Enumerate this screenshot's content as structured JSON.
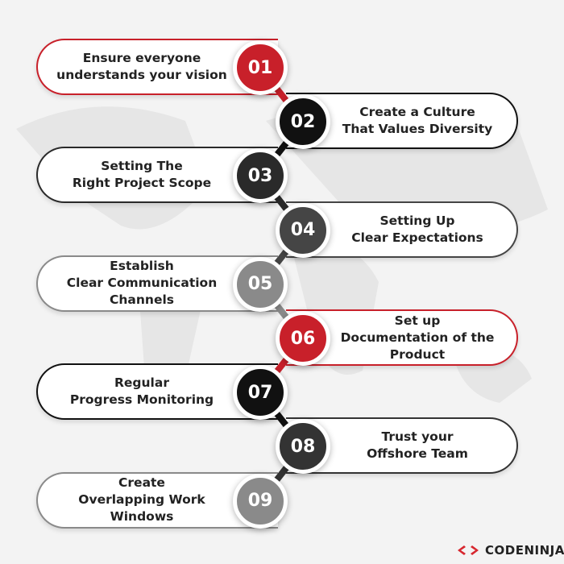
{
  "steps": [
    {
      "number": "01",
      "text": "Ensure everyone\nunderstands your vision",
      "side": "left",
      "color": "#c8202a"
    },
    {
      "number": "02",
      "text": "Create a Culture\nThat Values Diversity",
      "side": "right",
      "color": "#111111"
    },
    {
      "number": "03",
      "text": "Setting The\nRight Project Scope",
      "side": "left",
      "color": "#2a2a2a"
    },
    {
      "number": "04",
      "text": "Setting Up\nClear Expectations",
      "side": "right",
      "color": "#454545"
    },
    {
      "number": "05",
      "text": "Establish\nClear Communication\nChannels",
      "side": "left",
      "color": "#8a8a8a"
    },
    {
      "number": "06",
      "text": "Set up\nDocumentation of the\nProduct",
      "side": "right",
      "color": "#c8202a"
    },
    {
      "number": "07",
      "text": "Regular\nProgress Monitoring",
      "side": "left",
      "color": "#111111"
    },
    {
      "number": "08",
      "text": "Trust your\nOffshore Team",
      "side": "right",
      "color": "#333333"
    },
    {
      "number": "09",
      "text": "Create\nOverlapping Work\nWindows",
      "side": "left",
      "color": "#8a8a8a"
    }
  ],
  "brand": {
    "name": "CODENINJA",
    "color": "#d7262e"
  }
}
